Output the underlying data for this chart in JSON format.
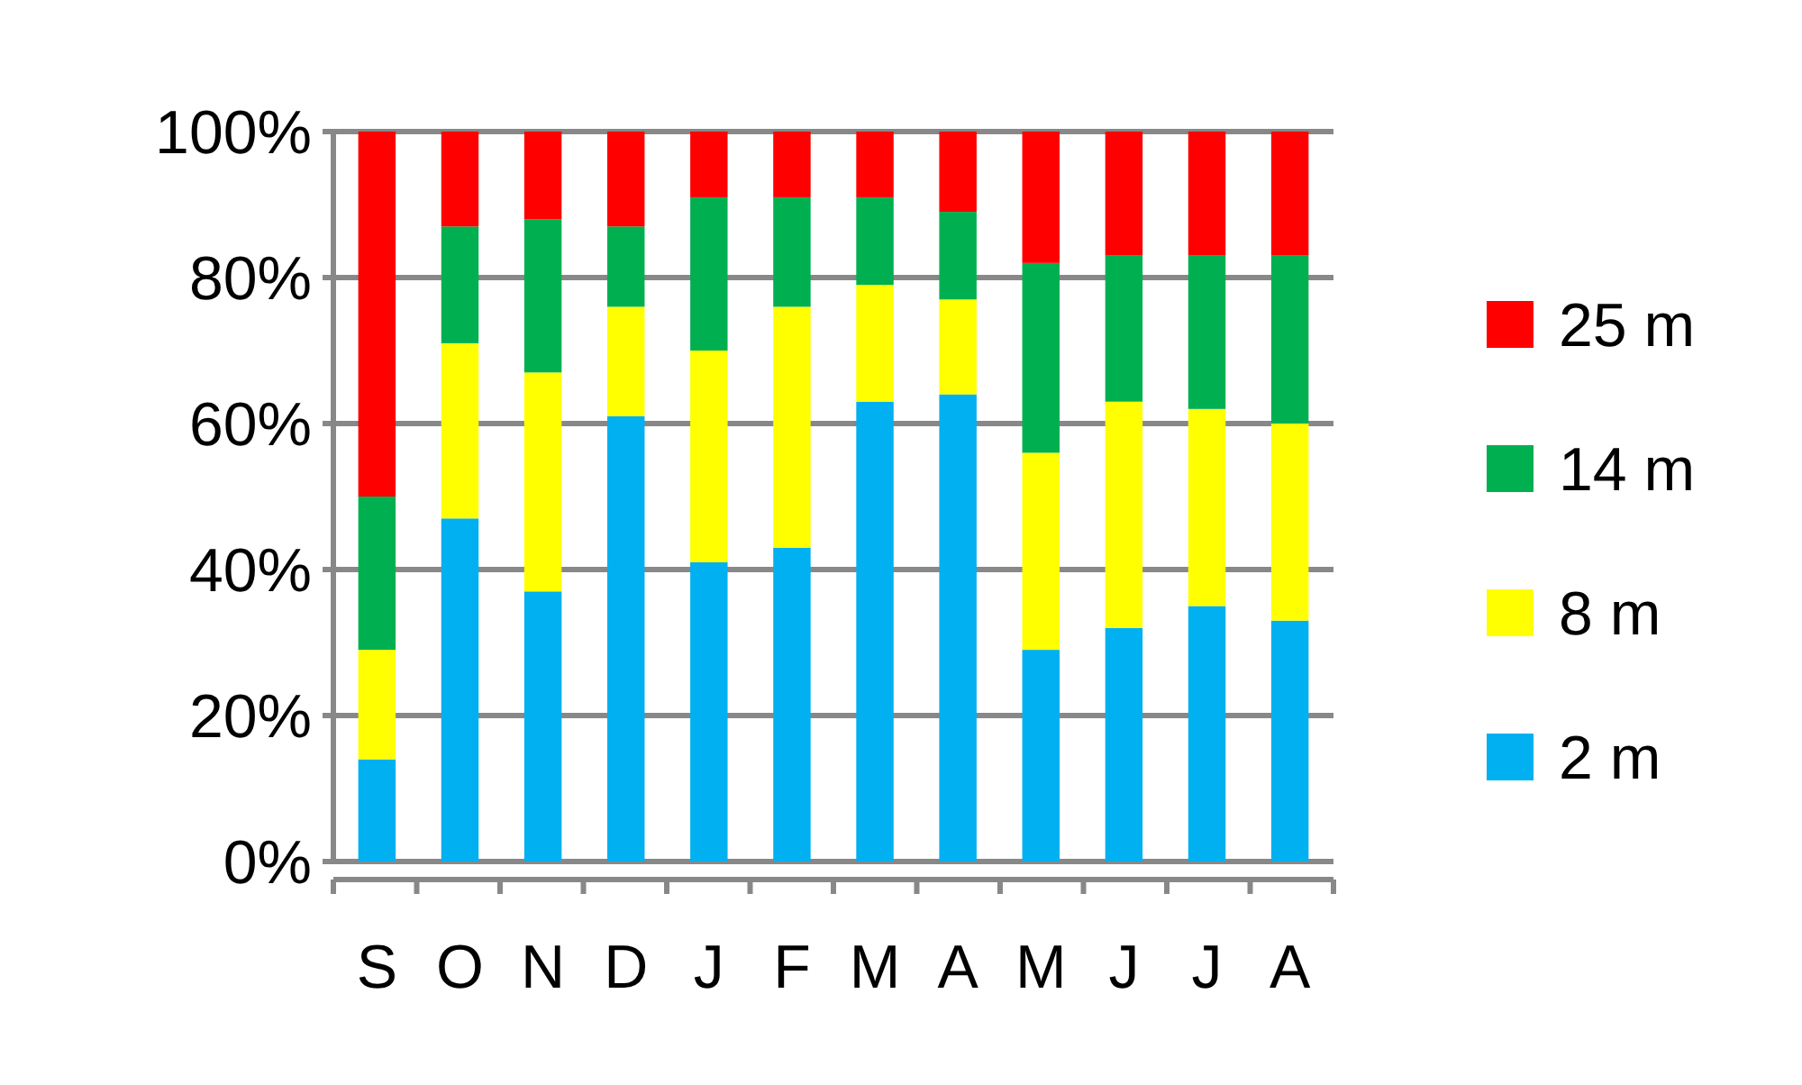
{
  "chart_data": {
    "type": "bar",
    "stacked": true,
    "categories": [
      "S",
      "O",
      "N",
      "D",
      "J",
      "F",
      "M",
      "A",
      "M",
      "J",
      "J",
      "A"
    ],
    "series": [
      {
        "name": "2 m",
        "color": "#00b0f0",
        "values": [
          14,
          47,
          37,
          61,
          41,
          43,
          63,
          64,
          29,
          32,
          35,
          33
        ]
      },
      {
        "name": "8 m",
        "color": "#ffff00",
        "values": [
          15,
          24,
          30,
          15,
          29,
          33,
          16,
          13,
          27,
          31,
          27,
          27
        ]
      },
      {
        "name": "14 m",
        "color": "#00b050",
        "values": [
          21,
          16,
          21,
          11,
          21,
          15,
          12,
          12,
          26,
          20,
          21,
          23
        ]
      },
      {
        "name": "25 m",
        "color": "#ff0000",
        "values": [
          50,
          13,
          12,
          13,
          9,
          9,
          9,
          11,
          18,
          17,
          17,
          17
        ]
      }
    ],
    "ylim": [
      0,
      100
    ],
    "yticks": [
      {
        "value": 0,
        "label": "0%"
      },
      {
        "value": 20,
        "label": "20%"
      },
      {
        "value": 40,
        "label": "40%"
      },
      {
        "value": 60,
        "label": "60%"
      },
      {
        "value": 80,
        "label": "80%"
      },
      {
        "value": 100,
        "label": "100%"
      }
    ],
    "grid": "y",
    "legend": "right"
  }
}
